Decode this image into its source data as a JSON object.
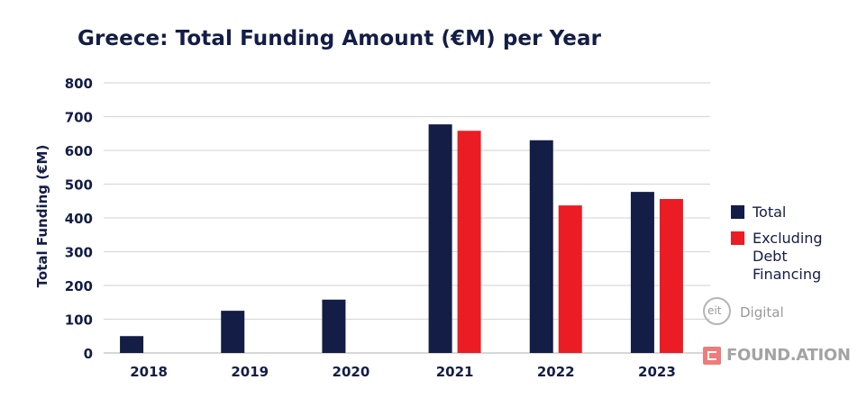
{
  "chart_data": {
    "type": "bar",
    "title": "Greece: Total Funding Amount (€M) per Year",
    "ylabel": "Total Funding (€M)",
    "xlabel": "",
    "ylim": [
      0,
      800
    ],
    "yticks": [
      0,
      100,
      200,
      300,
      400,
      500,
      600,
      700,
      800
    ],
    "categories": [
      "2018",
      "2019",
      "2020",
      "2021",
      "2022",
      "2023"
    ],
    "series": [
      {
        "name": "Total",
        "color": "#131d45",
        "values": [
          50,
          125,
          158,
          677,
          630,
          477
        ]
      },
      {
        "name": "Excluding Debt Financing",
        "color": "#ec1c24",
        "values": [
          null,
          null,
          null,
          658,
          437,
          456
        ]
      }
    ],
    "grid": true,
    "legend_position": "right"
  },
  "logos": {
    "eit_mark": "eit",
    "eit_word": "Digital",
    "foundation": "FOUND.ATION"
  }
}
